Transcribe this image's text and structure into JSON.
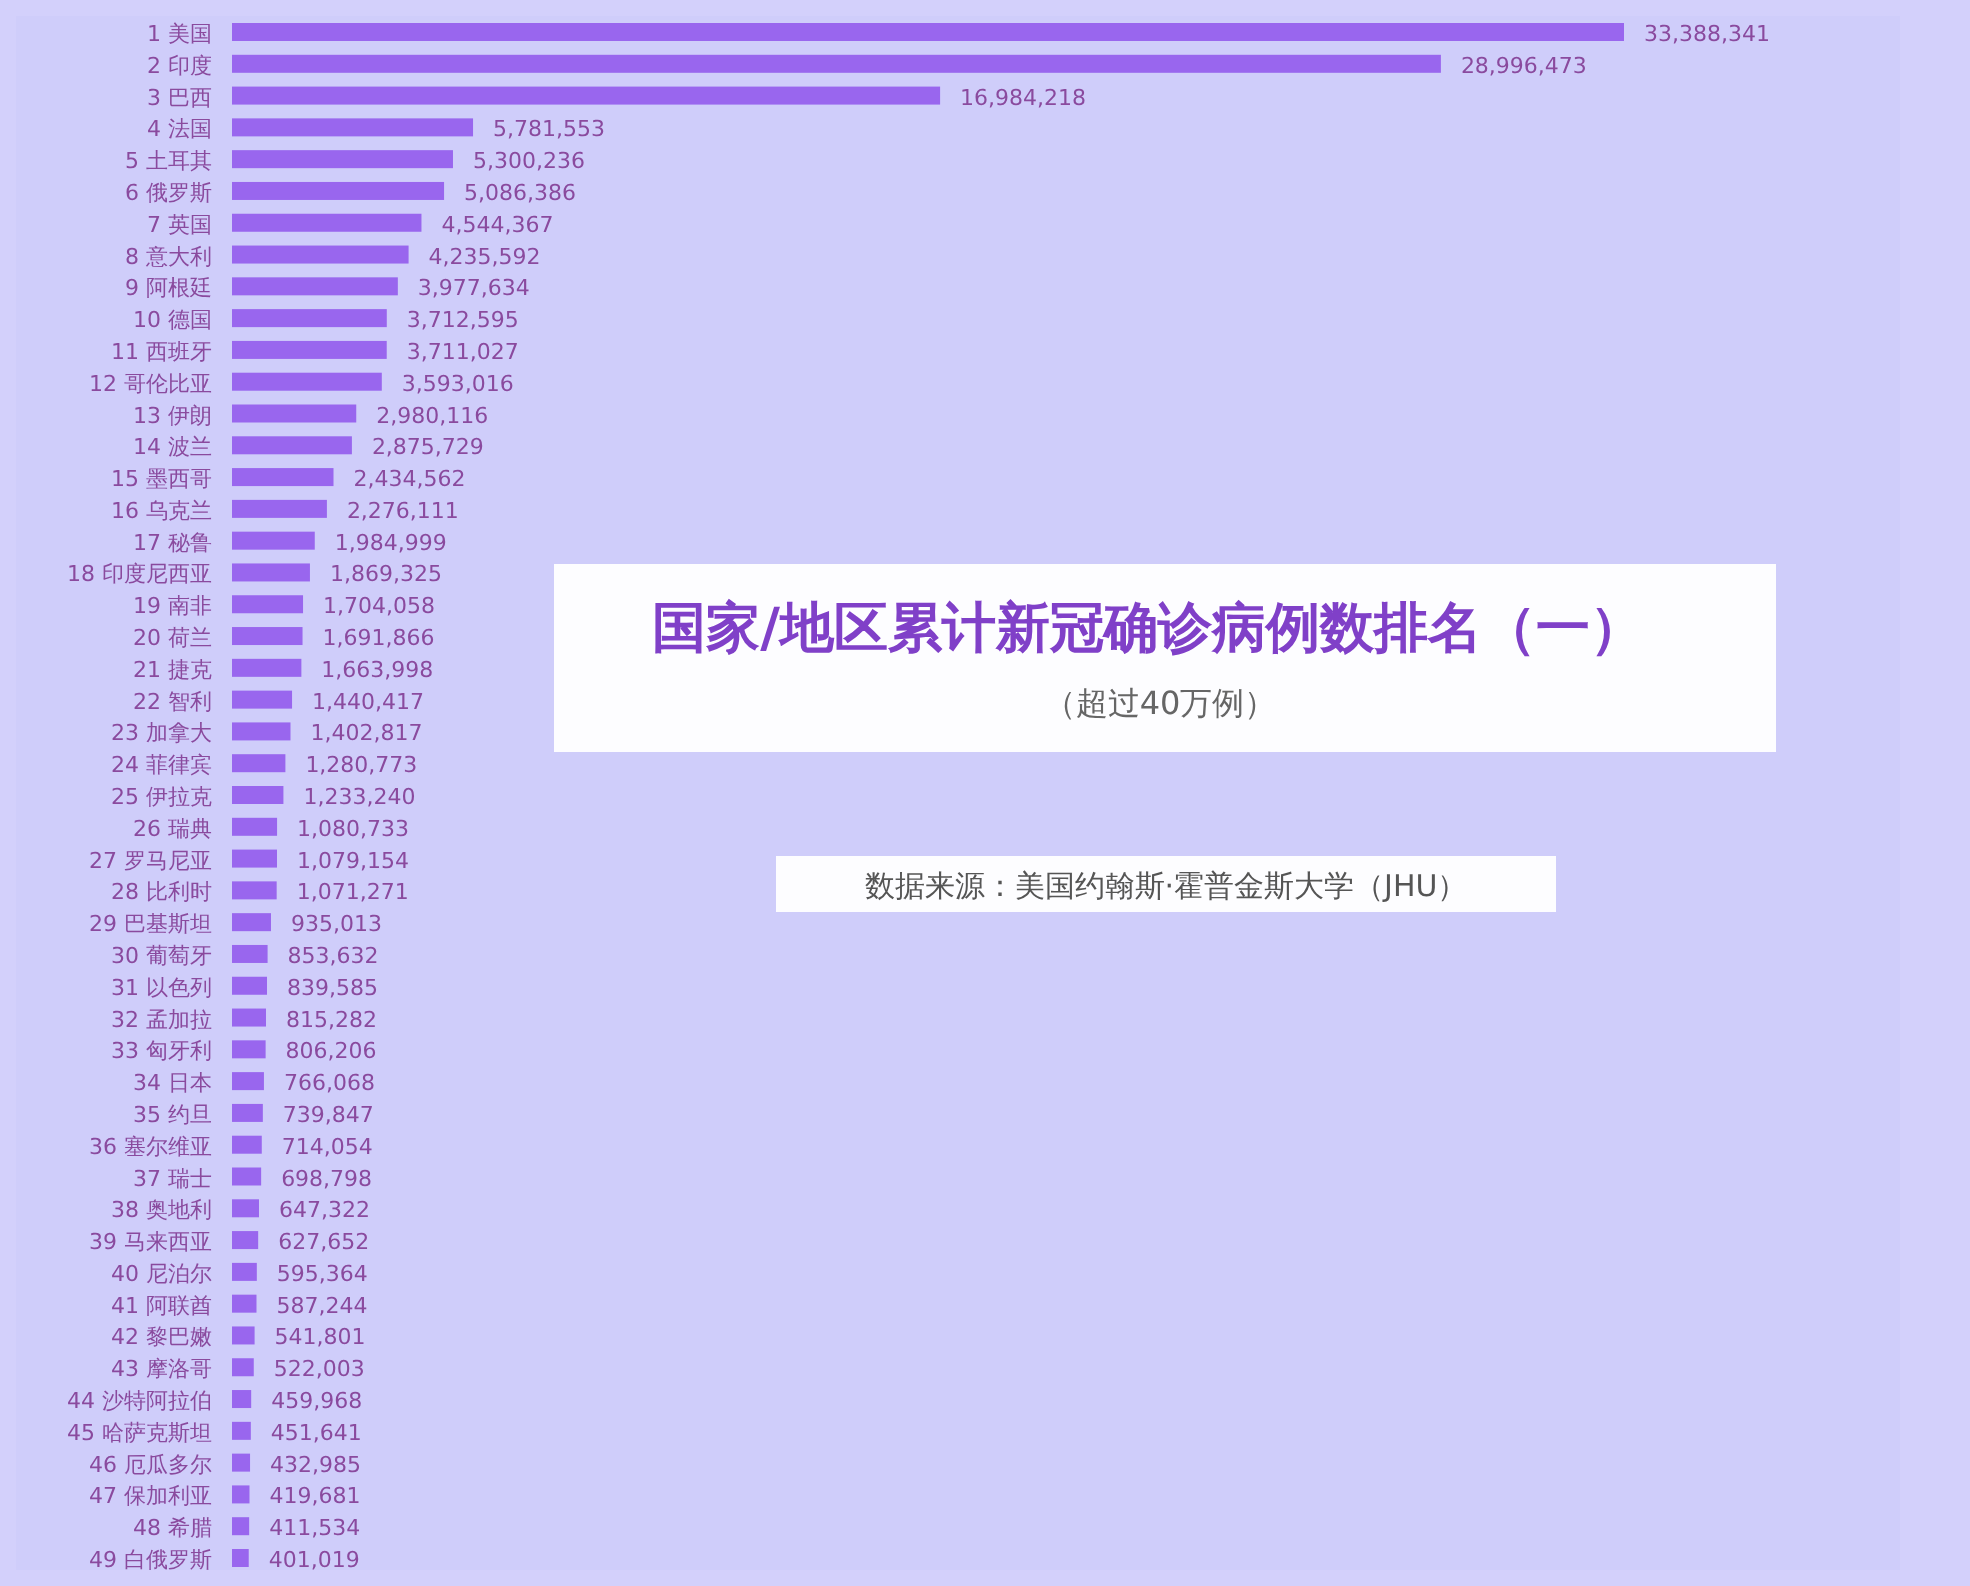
{
  "chart_data": {
    "type": "bar",
    "orientation": "horizontal",
    "title": "国家/地区累计新冠确诊病例数排名（一）",
    "subtitle": "（超过40万例）",
    "annotations": [
      "数据来源：美国约翰斯·霍普金斯大学（JHU）"
    ],
    "categories": [
      "1 美国",
      "2 印度",
      "3 巴西",
      "4 法国",
      "5 土耳其",
      "6 俄罗斯",
      "7 英国",
      "8 意大利",
      "9 阿根廷",
      "10 德国",
      "11 西班牙",
      "12 哥伦比亚",
      "13 伊朗",
      "14 波兰",
      "15 墨西哥",
      "16 乌克兰",
      "17 秘鲁",
      "18 印度尼西亚",
      "19 南非",
      "20 荷兰",
      "21 捷克",
      "22 智利",
      "23 加拿大",
      "24 菲律宾",
      "25 伊拉克",
      "26 瑞典",
      "27 罗马尼亚",
      "28 比利时",
      "29 巴基斯坦",
      "30 葡萄牙",
      "31 以色列",
      "32 孟加拉",
      "33 匈牙利",
      "34 日本",
      "35 约旦",
      "36 塞尔维亚",
      "37 瑞士",
      "38 奥地利",
      "39 马来西亚",
      "40 尼泊尔",
      "41 阿联酋",
      "42 黎巴嫩",
      "43 摩洛哥",
      "44 沙特阿拉伯",
      "45 哈萨克斯坦",
      "46 厄瓜多尔",
      "47 保加利亚",
      "48 希腊",
      "49 白俄罗斯"
    ],
    "values": [
      33388341,
      28996473,
      16984218,
      5781553,
      5300236,
      5086386,
      4544367,
      4235592,
      3977634,
      3712595,
      3711027,
      3593016,
      2980116,
      2875729,
      2434562,
      2276111,
      1984999,
      1869325,
      1704058,
      1691866,
      1663998,
      1440417,
      1402817,
      1280773,
      1233240,
      1080733,
      1079154,
      1071271,
      935013,
      853632,
      839585,
      815282,
      806206,
      766068,
      739847,
      714054,
      698798,
      647322,
      627652,
      595364,
      587244,
      541801,
      522003,
      459968,
      451641,
      432985,
      419681,
      411534,
      401019
    ],
    "value_labels": [
      "33,388,341",
      "28,996,473",
      "16,984,218",
      "5,781,553",
      "5,300,236",
      "5,086,386",
      "4,544,367",
      "4,235,592",
      "3,977,634",
      "3,712,595",
      "3,711,027",
      "3,593,016",
      "2,980,116",
      "2,875,729",
      "2,434,562",
      "2,276,111",
      "1,984,999",
      "1,869,325",
      "1,704,058",
      "1,691,866",
      "1,663,998",
      "1,440,417",
      "1,402,817",
      "1,280,773",
      "1,233,240",
      "1,080,733",
      "1,079,154",
      "1,071,271",
      "935,013",
      "853,632",
      "839,585",
      "815,282",
      "806,206",
      "766,068",
      "739,847",
      "714,054",
      "698,798",
      "647,322",
      "627,652",
      "595,364",
      "587,244",
      "541,801",
      "522,003",
      "459,968",
      "451,641",
      "432,985",
      "419,681",
      "411,534",
      "401,019"
    ],
    "color": "#9966ee"
  }
}
